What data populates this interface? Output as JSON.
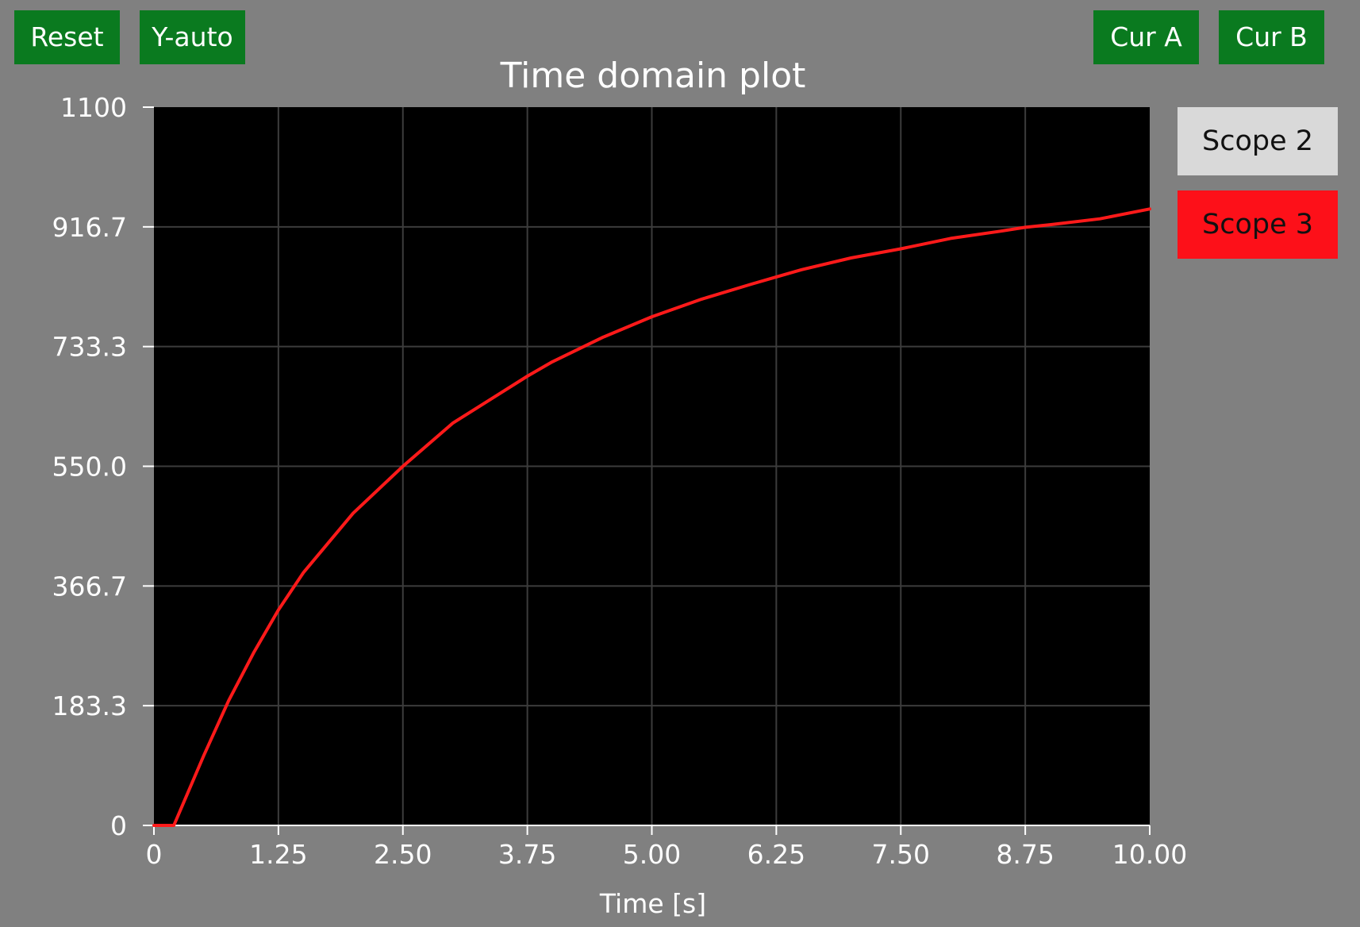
{
  "toolbar": {
    "reset_label": "Reset",
    "yauto_label": "Y-auto",
    "cur_a_label": "Cur A",
    "cur_b_label": "Cur B"
  },
  "legend": {
    "scopes": [
      {
        "label": "Scope 2",
        "color": "#d9d9d9"
      },
      {
        "label": "Scope 3",
        "color": "#fd1019"
      }
    ]
  },
  "chart_data": {
    "type": "line",
    "title": "Time domain plot",
    "xlabel": "Time [s]",
    "ylabel": "",
    "xlim": [
      0,
      10
    ],
    "ylim": [
      0,
      1100
    ],
    "xticks": [
      "0",
      "1.25",
      "2.50",
      "3.75",
      "5.00",
      "6.25",
      "7.50",
      "8.75",
      "10.00"
    ],
    "yticks": [
      "0",
      "183.3",
      "366.7",
      "550.0",
      "733.3",
      "916.7",
      "1100"
    ],
    "grid": true,
    "background": "#000000",
    "series": [
      {
        "color": "#ff1a1a",
        "x": [
          0,
          0.2,
          0.5,
          0.75,
          1.0,
          1.25,
          1.5,
          2.0,
          2.5,
          3.0,
          3.5,
          3.75,
          4.0,
          4.5,
          5.0,
          5.5,
          6.0,
          6.25,
          6.5,
          7.0,
          7.5,
          8.0,
          8.5,
          8.75,
          9.0,
          9.5,
          10.0
        ],
        "y": [
          0,
          0,
          107,
          191,
          264,
          330,
          387,
          478,
          550,
          616,
          664,
          688,
          710,
          747,
          779,
          806,
          829,
          840,
          851,
          869,
          883,
          899,
          910,
          916,
          920,
          929,
          944
        ]
      }
    ]
  }
}
